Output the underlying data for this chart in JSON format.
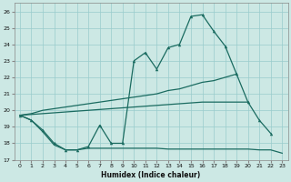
{
  "xlabel": "Humidex (Indice chaleur)",
  "bg_color": "#cce8e4",
  "grid_color": "#99cccc",
  "line_color": "#1a6b60",
  "xlim": [
    -0.5,
    23.5
  ],
  "ylim": [
    17,
    26.5
  ],
  "xticks": [
    0,
    1,
    2,
    3,
    4,
    5,
    6,
    7,
    8,
    9,
    10,
    11,
    12,
    13,
    14,
    15,
    16,
    17,
    18,
    19,
    20,
    21,
    22,
    23
  ],
  "yticks": [
    17,
    18,
    19,
    20,
    21,
    22,
    23,
    24,
    25,
    26
  ],
  "line1_y": [
    19.7,
    19.4,
    18.8,
    18.0,
    17.6,
    17.6,
    17.8,
    19.1,
    18.0,
    18.0,
    23.0,
    23.5,
    22.5,
    23.8,
    24.0,
    25.7,
    25.8,
    24.8,
    23.9,
    22.2,
    20.5,
    19.4,
    18.6,
    null
  ],
  "line2_y": [
    19.7,
    19.8,
    20.0,
    20.1,
    20.2,
    20.3,
    20.4,
    20.5,
    20.6,
    20.7,
    20.8,
    20.9,
    21.0,
    21.2,
    21.3,
    21.5,
    21.7,
    21.8,
    22.0,
    22.2,
    null,
    null,
    null,
    null
  ],
  "line3_y": [
    19.7,
    19.75,
    19.8,
    19.85,
    19.9,
    19.95,
    20.0,
    20.05,
    20.1,
    20.15,
    20.2,
    20.25,
    20.3,
    20.35,
    20.4,
    20.45,
    20.5,
    20.5,
    20.5,
    20.5,
    20.5,
    null,
    null,
    null
  ],
  "line4_y": [
    19.7,
    19.4,
    18.7,
    17.9,
    17.6,
    17.6,
    17.7,
    17.7,
    17.7,
    17.7,
    17.7,
    17.7,
    17.7,
    17.65,
    17.65,
    17.65,
    17.65,
    17.65,
    17.65,
    17.65,
    17.65,
    17.6,
    17.6,
    17.4
  ]
}
